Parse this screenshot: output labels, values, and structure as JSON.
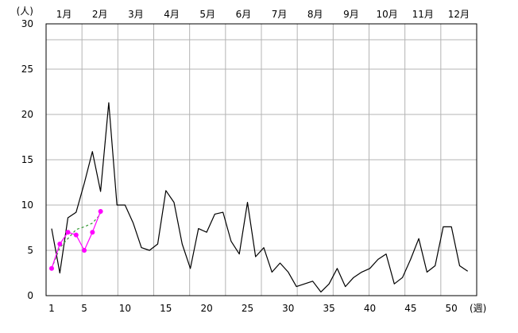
{
  "chart_data": {
    "type": "line",
    "ylabel": "(人)",
    "xlabel": "(週)",
    "ylim": [
      0,
      30
    ],
    "yticks": [
      0,
      5,
      10,
      15,
      20,
      25,
      30
    ],
    "xlim": [
      1,
      53
    ],
    "xticks": [
      1,
      5,
      10,
      15,
      20,
      25,
      30,
      35,
      40,
      45,
      50
    ],
    "months": [
      "1月",
      "2月",
      "3月",
      "4月",
      "5月",
      "6月",
      "7月",
      "8月",
      "9月",
      "10月",
      "11月",
      "12月"
    ],
    "grid": true,
    "series": [
      {
        "color": "#000000",
        "style": "solid",
        "markers": false,
        "x": [
          1,
          2,
          3,
          4,
          5,
          6,
          7,
          8,
          9,
          10,
          11,
          12,
          13,
          14,
          15,
          16,
          17,
          18,
          19,
          20,
          21,
          22,
          23,
          24,
          25,
          26,
          27,
          28,
          29,
          30,
          31,
          32,
          33,
          34,
          35,
          36,
          37,
          38,
          39,
          40,
          41,
          42,
          43,
          44,
          45,
          46,
          47,
          48,
          49,
          50,
          51,
          52
        ],
        "values": [
          7.4,
          2.5,
          8.6,
          9.2,
          12.4,
          15.9,
          11.5,
          21.3,
          10,
          10,
          8,
          5.3,
          5,
          5.7,
          11.6,
          10.3,
          5.7,
          3,
          7.4,
          7,
          9,
          9.2,
          6,
          4.6,
          10.3,
          4.3,
          5.3,
          2.6,
          3.6,
          2.6,
          1,
          1.3,
          1.6,
          0.4,
          1.3,
          3,
          1,
          2,
          2.6,
          3,
          4,
          4.6,
          1.3,
          2,
          4,
          6.3,
          2.6,
          3.3,
          7.6,
          7.6,
          3.3,
          2.7
        ]
      },
      {
        "color": "#339933",
        "style": "dashed",
        "markers": false,
        "x": [
          1,
          2,
          3,
          4,
          5,
          6,
          7
        ],
        "values": [
          3,
          5.3,
          6.3,
          7.3,
          7.6,
          8,
          9
        ]
      },
      {
        "color": "#ff00ff",
        "style": "solid",
        "markers": true,
        "x": [
          1,
          2,
          3,
          4,
          5,
          6,
          7
        ],
        "values": [
          3,
          5.7,
          7,
          6.7,
          5,
          7,
          9.3
        ]
      }
    ]
  }
}
